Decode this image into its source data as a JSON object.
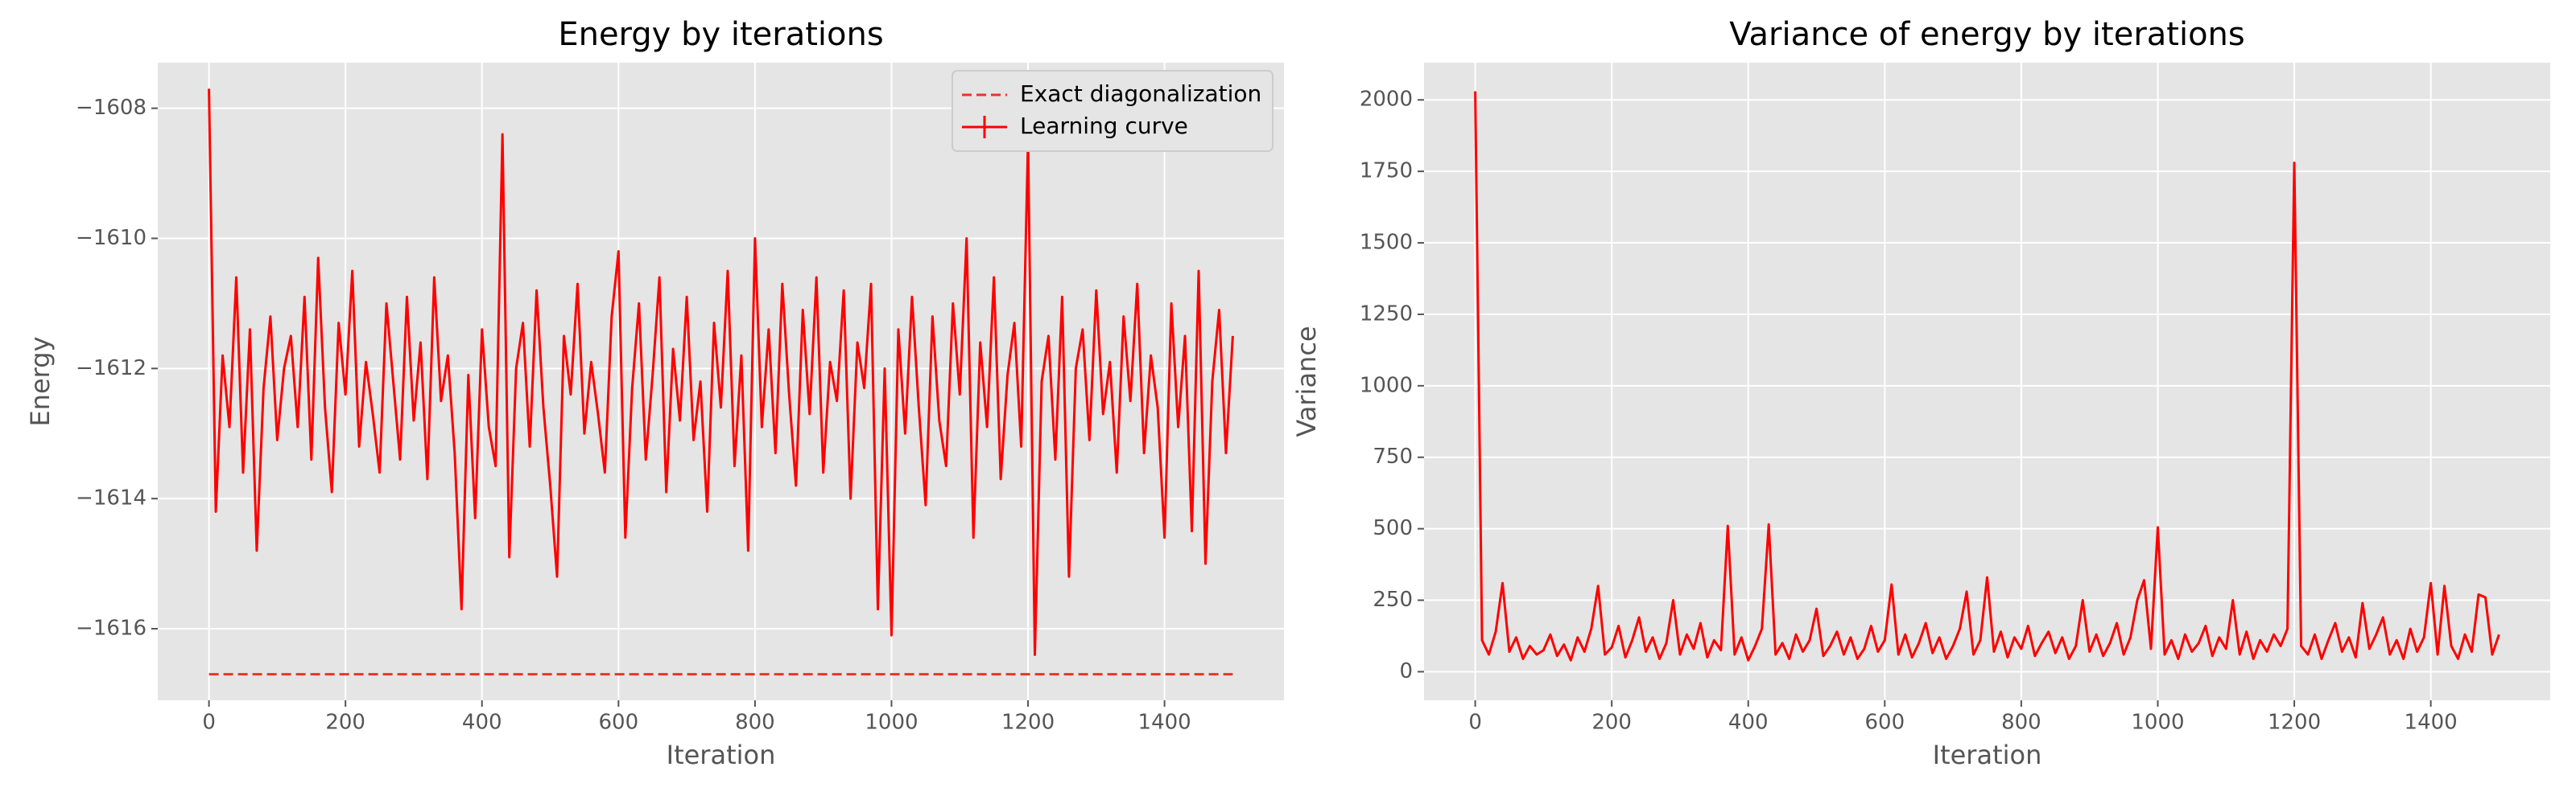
{
  "chart_data": [
    {
      "type": "line",
      "title": "Energy by iterations",
      "xlabel": "Iteration",
      "ylabel": "Energy",
      "xlim": [
        -75,
        1575
      ],
      "xticks": [
        0,
        200,
        400,
        600,
        800,
        1000,
        1200,
        1400
      ],
      "ylim": [
        -1617.1,
        -1607.3
      ],
      "yticks": [
        {
          "value": -1608,
          "label": "−1608"
        },
        {
          "value": -1610,
          "label": "−1610"
        },
        {
          "value": -1612,
          "label": "−1612"
        },
        {
          "value": -1614,
          "label": "−1614"
        },
        {
          "value": -1616,
          "label": "−1616"
        }
      ],
      "grid": true,
      "legend": "upper right",
      "series": [
        {
          "name": "Exact diagonalization",
          "color": "#e8352a",
          "linestyle": "dashed",
          "x": [
            0,
            1500
          ],
          "values": [
            -1616.7,
            -1616.7
          ]
        },
        {
          "name": "Learning curve",
          "color": "#ff0000",
          "linestyle": "solid",
          "errorbar": true,
          "x": [
            0,
            10,
            20,
            30,
            40,
            50,
            60,
            70,
            80,
            90,
            100,
            110,
            120,
            130,
            140,
            150,
            160,
            170,
            180,
            190,
            200,
            210,
            220,
            230,
            240,
            250,
            260,
            270,
            280,
            290,
            300,
            310,
            320,
            330,
            340,
            350,
            360,
            370,
            380,
            390,
            400,
            410,
            420,
            430,
            440,
            450,
            460,
            470,
            480,
            490,
            500,
            510,
            520,
            530,
            540,
            550,
            560,
            570,
            580,
            590,
            600,
            610,
            620,
            630,
            640,
            650,
            660,
            670,
            680,
            690,
            700,
            710,
            720,
            730,
            740,
            750,
            760,
            770,
            780,
            790,
            800,
            810,
            820,
            830,
            840,
            850,
            860,
            870,
            880,
            890,
            900,
            910,
            920,
            930,
            940,
            950,
            960,
            970,
            980,
            990,
            1000,
            1010,
            1020,
            1030,
            1040,
            1050,
            1060,
            1070,
            1080,
            1090,
            1100,
            1110,
            1120,
            1130,
            1140,
            1150,
            1160,
            1170,
            1180,
            1190,
            1200,
            1210,
            1220,
            1230,
            1240,
            1250,
            1260,
            1270,
            1280,
            1290,
            1300,
            1310,
            1320,
            1330,
            1340,
            1350,
            1360,
            1370,
            1380,
            1390,
            1400,
            1410,
            1420,
            1430,
            1440,
            1450,
            1460,
            1470,
            1480,
            1490,
            1500
          ],
          "values": [
            -1607.7,
            -1614.2,
            -1611.8,
            -1612.9,
            -1610.6,
            -1613.6,
            -1611.4,
            -1614.8,
            -1612.3,
            -1611.2,
            -1613.1,
            -1612.0,
            -1611.5,
            -1612.9,
            -1610.9,
            -1613.4,
            -1610.3,
            -1612.6,
            -1613.9,
            -1611.3,
            -1612.4,
            -1610.5,
            -1613.2,
            -1611.9,
            -1612.7,
            -1613.6,
            -1611.0,
            -1612.2,
            -1613.4,
            -1610.9,
            -1612.8,
            -1611.6,
            -1613.7,
            -1610.6,
            -1612.5,
            -1611.8,
            -1613.3,
            -1615.7,
            -1612.1,
            -1614.3,
            -1611.4,
            -1612.9,
            -1613.5,
            -1608.4,
            -1614.9,
            -1612.0,
            -1611.3,
            -1613.2,
            -1610.8,
            -1612.6,
            -1613.8,
            -1615.2,
            -1611.5,
            -1612.4,
            -1610.7,
            -1613.0,
            -1611.9,
            -1612.7,
            -1613.6,
            -1611.2,
            -1610.2,
            -1614.6,
            -1612.3,
            -1611.0,
            -1613.4,
            -1612.1,
            -1610.6,
            -1613.9,
            -1611.7,
            -1612.8,
            -1610.9,
            -1613.1,
            -1612.2,
            -1614.2,
            -1611.3,
            -1612.6,
            -1610.5,
            -1613.5,
            -1611.8,
            -1614.8,
            -1610.0,
            -1612.9,
            -1611.4,
            -1613.3,
            -1610.7,
            -1612.4,
            -1613.8,
            -1611.1,
            -1612.7,
            -1610.6,
            -1613.6,
            -1611.9,
            -1612.5,
            -1610.8,
            -1614.0,
            -1611.6,
            -1612.3,
            -1610.7,
            -1615.7,
            -1612.0,
            -1616.1,
            -1611.4,
            -1613.0,
            -1610.9,
            -1612.6,
            -1614.1,
            -1611.2,
            -1612.8,
            -1613.5,
            -1611.0,
            -1612.4,
            -1610.0,
            -1614.6,
            -1611.6,
            -1612.9,
            -1610.6,
            -1613.7,
            -1612.1,
            -1611.3,
            -1613.2,
            -1608.5,
            -1616.4,
            -1612.2,
            -1611.5,
            -1613.4,
            -1610.9,
            -1615.2,
            -1612.0,
            -1611.4,
            -1613.1,
            -1610.8,
            -1612.7,
            -1611.9,
            -1613.6,
            -1611.2,
            -1612.5,
            -1610.7,
            -1613.3,
            -1611.8,
            -1612.6,
            -1614.6,
            -1611.0,
            -1612.9,
            -1611.5,
            -1614.5,
            -1610.5,
            -1615.0,
            -1612.2,
            -1611.1,
            -1613.3,
            -1611.5
          ]
        }
      ]
    },
    {
      "type": "line",
      "title": "Variance of energy by iterations",
      "xlabel": "Iteration",
      "ylabel": "Variance",
      "xlim": [
        -75,
        1575
      ],
      "xticks": [
        0,
        200,
        400,
        600,
        800,
        1000,
        1200,
        1400
      ],
      "ylim": [
        -100,
        2130
      ],
      "yticks": [
        0,
        250,
        500,
        750,
        1000,
        1250,
        1500,
        1750,
        2000
      ],
      "grid": true,
      "series": [
        {
          "color": "#ff0000",
          "linestyle": "solid",
          "x": [
            0,
            10,
            20,
            30,
            40,
            50,
            60,
            70,
            80,
            90,
            100,
            110,
            120,
            130,
            140,
            150,
            160,
            170,
            180,
            190,
            200,
            210,
            220,
            230,
            240,
            250,
            260,
            270,
            280,
            290,
            300,
            310,
            320,
            330,
            340,
            350,
            360,
            370,
            380,
            390,
            400,
            410,
            420,
            430,
            440,
            450,
            460,
            470,
            480,
            490,
            500,
            510,
            520,
            530,
            540,
            550,
            560,
            570,
            580,
            590,
            600,
            610,
            620,
            630,
            640,
            650,
            660,
            670,
            680,
            690,
            700,
            710,
            720,
            730,
            740,
            750,
            760,
            770,
            780,
            790,
            800,
            810,
            820,
            830,
            840,
            850,
            860,
            870,
            880,
            890,
            900,
            910,
            920,
            930,
            940,
            950,
            960,
            970,
            980,
            990,
            1000,
            1010,
            1020,
            1030,
            1040,
            1050,
            1060,
            1070,
            1080,
            1090,
            1100,
            1110,
            1120,
            1130,
            1140,
            1150,
            1160,
            1170,
            1180,
            1190,
            1200,
            1210,
            1220,
            1230,
            1240,
            1250,
            1260,
            1270,
            1280,
            1290,
            1300,
            1310,
            1320,
            1330,
            1340,
            1350,
            1360,
            1370,
            1380,
            1390,
            1400,
            1410,
            1420,
            1430,
            1440,
            1450,
            1460,
            1470,
            1480,
            1490,
            1500
          ],
          "values": [
            2030,
            110,
            60,
            140,
            310,
            70,
            120,
            45,
            90,
            60,
            75,
            130,
            55,
            95,
            40,
            120,
            70,
            150,
            300,
            60,
            85,
            160,
            50,
            110,
            190,
            70,
            120,
            45,
            100,
            250,
            60,
            130,
            80,
            170,
            50,
            110,
            75,
            510,
            60,
            120,
            40,
            90,
            150,
            515,
            60,
            100,
            45,
            130,
            70,
            110,
            220,
            55,
            90,
            140,
            60,
            120,
            45,
            80,
            160,
            70,
            110,
            305,
            60,
            130,
            50,
            100,
            170,
            65,
            120,
            45,
            90,
            150,
            280,
            60,
            110,
            330,
            70,
            140,
            50,
            120,
            80,
            160,
            55,
            100,
            140,
            65,
            120,
            45,
            90,
            250,
            70,
            130,
            55,
            100,
            170,
            60,
            120,
            250,
            320,
            80,
            505,
            60,
            110,
            45,
            130,
            70,
            100,
            160,
            55,
            120,
            80,
            250,
            60,
            140,
            45,
            110,
            70,
            130,
            90,
            150,
            1780,
            90,
            60,
            130,
            45,
            110,
            170,
            70,
            120,
            50,
            240,
            80,
            130,
            190,
            60,
            110,
            45,
            150,
            70,
            120,
            310,
            60,
            300,
            90,
            45,
            130,
            70,
            270,
            260,
            60,
            130
          ]
        }
      ]
    }
  ]
}
